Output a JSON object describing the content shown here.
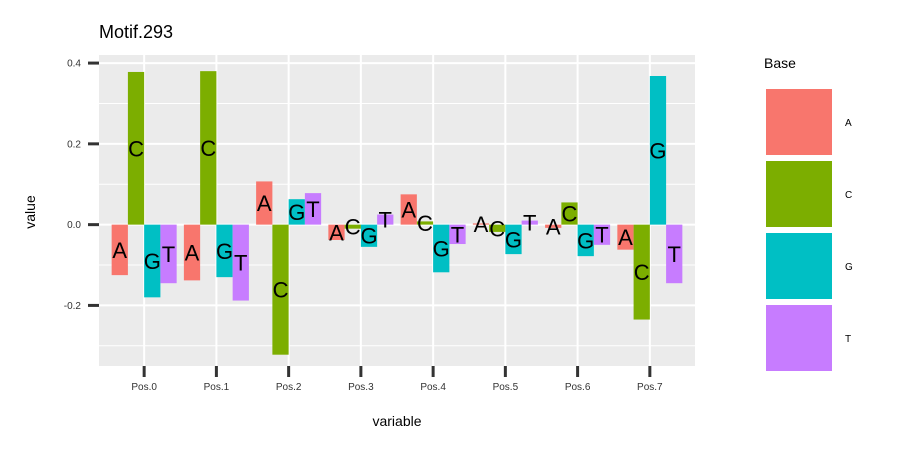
{
  "chart_data": {
    "type": "bar",
    "title": "Motif.293",
    "xlabel": "variable",
    "ylabel": "value",
    "ylim": [
      -0.35,
      0.42
    ],
    "yticks": [
      0.4,
      0.2,
      0.0,
      -0.2
    ],
    "ytick_labels": [
      "0.4",
      "0.2",
      "0.0",
      "-0.2"
    ],
    "grid": true,
    "legend_title": "Base",
    "legend_position": "right",
    "categories": [
      "Pos.0",
      "Pos.1",
      "Pos.2",
      "Pos.3",
      "Pos.4",
      "Pos.5",
      "Pos.6",
      "Pos.7"
    ],
    "series": [
      {
        "name": "A",
        "color": "#F8766D",
        "values": [
          -0.125,
          -0.138,
          0.107,
          -0.038,
          0.075,
          0.003,
          -0.008,
          -0.062
        ]
      },
      {
        "name": "C",
        "color": "#7CAE00",
        "values": [
          0.378,
          0.38,
          -0.322,
          -0.01,
          0.008,
          -0.018,
          0.055,
          -0.235
        ]
      },
      {
        "name": "G",
        "color": "#00BFC4",
        "values": [
          -0.18,
          -0.13,
          0.063,
          -0.055,
          -0.118,
          -0.073,
          -0.078,
          0.368
        ]
      },
      {
        "name": "T",
        "color": "#C77CFF",
        "values": [
          -0.145,
          -0.188,
          0.078,
          0.025,
          -0.048,
          0.01,
          -0.05,
          -0.145
        ]
      }
    ]
  }
}
